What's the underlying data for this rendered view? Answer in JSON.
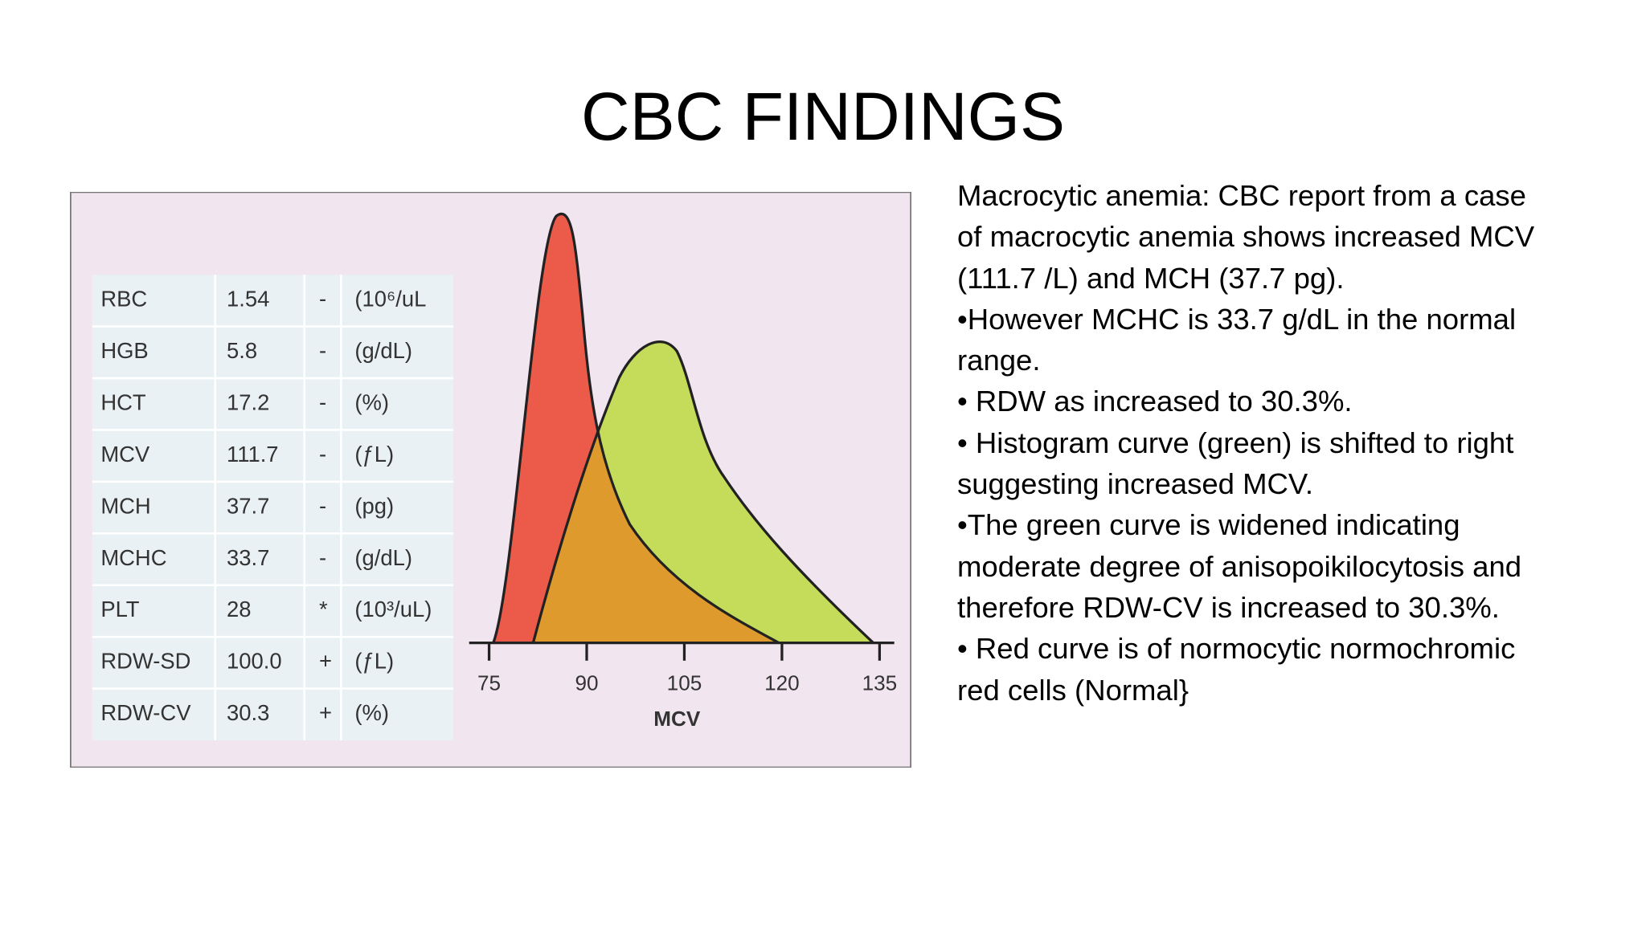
{
  "title": "CBC FINDINGS",
  "figure": {
    "table": {
      "rows": [
        [
          "RBC",
          "1.54",
          "-",
          "(10⁶/uL"
        ],
        [
          "HGB",
          "5.8",
          "-",
          "(g/dL)"
        ],
        [
          "HCT",
          "17.2",
          "-",
          "(%)"
        ],
        [
          "MCV",
          "111.7",
          "-",
          "(ƒL)"
        ],
        [
          "MCH",
          "37.7",
          "-",
          "(pg)"
        ],
        [
          "MCHC",
          "33.7",
          "-",
          "(g/dL)"
        ],
        [
          "PLT",
          "28",
          "*",
          "(10³/uL)"
        ],
        [
          "RDW-SD",
          "100.0",
          "+",
          "(ƒL)"
        ],
        [
          "RDW-CV",
          "30.3",
          "+",
          "(%)"
        ]
      ]
    },
    "histogram": {
      "x_ticks": [
        75,
        90,
        105,
        120,
        135
      ],
      "x_label": "MCV"
    }
  },
  "text": {
    "paragraphs": [
      "Macrocytic anemia: CBC report from a case of macrocytic anemia shows increased MCV (111.7 /L) and MCH (37.7 pg).",
      "•However MCHC is 33.7 g/dL in the normal range.",
      "• RDW as increased to 30.3%.",
      "• Histogram curve (green) is shifted to right suggesting increased MCV.",
      "•The green curve is widened indicating moderate degree of anisopoikilocytosis and therefore RDW-CV is increased to 30.3%.",
      "• Red curve is of normocytic normochromic red cells (Normal}"
    ]
  }
}
